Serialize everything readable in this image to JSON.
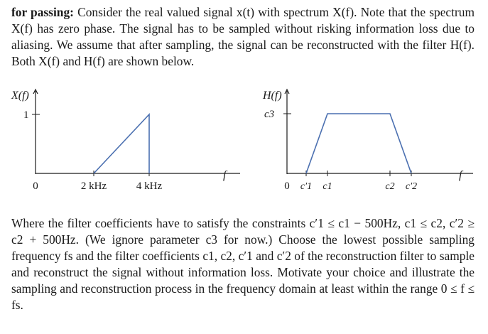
{
  "intro": {
    "label": "for passing:",
    "text": "Consider the real valued signal x(t) with spectrum X(f). Note that the spectrum X(f) has zero phase. The signal has to be sampled without risking information loss due to aliasing. We assume that after sampling, the signal can be reconstructed with the filter H(f). Both X(f) and H(f) are shown below."
  },
  "figures": {
    "left": {
      "y_axis_label": "X(f)",
      "y_tick_label": "1",
      "x_axis_label": "f",
      "x_ticks": [
        "0",
        "2 kHz",
        "4 kHz"
      ]
    },
    "right": {
      "y_axis_label": "H(f)",
      "y_tick_label": "c3",
      "x_axis_label": "f",
      "x_ticks": [
        "0",
        "c′1",
        "c1",
        "c2",
        "c′2"
      ]
    }
  },
  "question": {
    "text": "Where the filter coefficients have to satisfy the constraints c′1 ≤ c1 − 500Hz, c1 ≤ c2, c′2 ≥ c2 + 500Hz. (We ignore parameter c3 for now.) Choose the lowest possible sampling frequency fs and the filter coefficients c1, c2, c′1 and c′2 of the reconstruction filter to sample and reconstruct the signal without information loss. Motivate your choice and illustrate the sampling and reconstruction process in the frequency domain at least within the range 0 ≤ f ≤ fs."
  },
  "colors": {
    "curve": "#4a6fb0",
    "axis": "#1a1a1a"
  }
}
